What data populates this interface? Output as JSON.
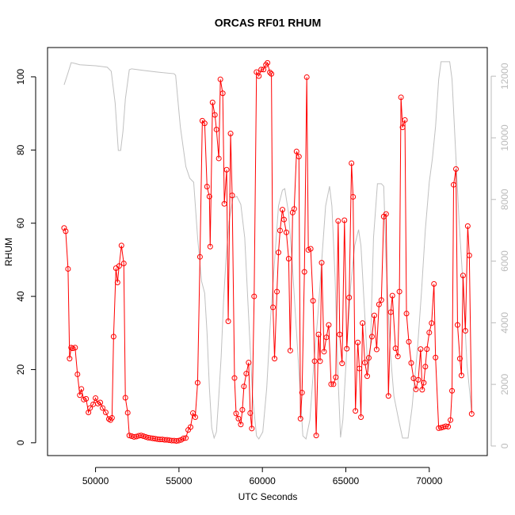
{
  "chart_data": {
    "type": "line",
    "title": "ORCAS RF01 RHUM",
    "xlabel": "UTC Seconds",
    "ylabel": "RHUM",
    "xlim": [
      47124,
      73476
    ],
    "xticks": [
      50000,
      55000,
      60000,
      65000,
      70000
    ],
    "ylim": [
      -3.5,
      108
    ],
    "yticks": [
      0,
      20,
      40,
      60,
      80,
      100
    ],
    "y2lim": [
      -310,
      12930
    ],
    "y2ticks": [
      0,
      2000,
      4000,
      6000,
      8000,
      10000,
      12000
    ],
    "series": [
      {
        "color": "#ff0000",
        "markers": true,
        "x": [
          48118,
          48212,
          48353,
          48447,
          48541,
          48635,
          48776,
          48918,
          49059,
          49153,
          49294,
          49435,
          49576,
          49671,
          49859,
          50000,
          50141,
          50282,
          50424,
          50612,
          50800,
          50894,
          50988,
          51082,
          51224,
          51318,
          51412,
          51553,
          51694,
          51788,
          51929,
          52024,
          52165,
          52306,
          52447,
          52588,
          52729,
          52871,
          53012,
          53153,
          53294,
          53435,
          53576,
          53718,
          53859,
          54000,
          54141,
          54282,
          54424,
          54565,
          54706,
          54847,
          54988,
          55129,
          55271,
          55412,
          55553,
          55694,
          55835,
          55976,
          56118,
          56259,
          56400,
          56541,
          56682,
          56824,
          56871,
          57012,
          57153,
          57247,
          57388,
          57482,
          57624,
          57718,
          57859,
          57953,
          58094,
          58188,
          58329,
          58424,
          58565,
          58706,
          58800,
          58894,
          59035,
          59176,
          59271,
          59365,
          59506,
          59647,
          59788,
          59929,
          60071,
          60212,
          60306,
          60447,
          60541,
          60635,
          60729,
          60871,
          60965,
          61059,
          61200,
          61294,
          61435,
          61576,
          61671,
          61812,
          61906,
          62047,
          62188,
          62282,
          62376,
          62518,
          62659,
          62753,
          62894,
          63035,
          63129,
          63224,
          63365,
          63459,
          63553,
          63694,
          63835,
          63976,
          64118,
          64259,
          64400,
          64541,
          64635,
          64776,
          64918,
          65059,
          65200,
          65341,
          65435,
          65576,
          65718,
          65812,
          65906,
          66000,
          66141,
          66282,
          66376,
          66565,
          66706,
          66847,
          66988,
          67129,
          67271,
          67412,
          67553,
          67694,
          67788,
          67976,
          68118,
          68212,
          68306,
          68400,
          68541,
          68635,
          68776,
          68918,
          69059,
          69200,
          69341,
          69482,
          69576,
          69671,
          69765,
          69859,
          70000,
          70141,
          70282,
          70376,
          70565,
          70706,
          70847,
          70988,
          71129,
          71271,
          71365,
          71459,
          71600,
          71694,
          71835,
          71929,
          72024,
          72165,
          72306,
          72400,
          72541
        ],
        "values": [
          58.7,
          57.8,
          47.5,
          23,
          26,
          25.8,
          26,
          18.7,
          13,
          14.7,
          11.8,
          12,
          8.3,
          9.5,
          10.5,
          12.2,
          10.7,
          11,
          9.5,
          8.3,
          6.5,
          6.2,
          6.8,
          29,
          47.7,
          43.8,
          48.3,
          53.9,
          49,
          12.3,
          8.2,
          2,
          1.8,
          1.6,
          1.7,
          1.9,
          2,
          1.8,
          1.6,
          1.4,
          1.3,
          1.2,
          1.1,
          1,
          0.9,
          0.9,
          0.8,
          0.8,
          0.7,
          0.6,
          0.6,
          0.5,
          0.6,
          0.8,
          1.2,
          1.3,
          3.5,
          4.3,
          8.1,
          7,
          16.4,
          50.8,
          88,
          87.3,
          70,
          67.3,
          53.6,
          93,
          89.6,
          85.6,
          77.7,
          99.3,
          95.5,
          65.3,
          74.6,
          33.2,
          84.5,
          67.6,
          17.7,
          8,
          6.6,
          5,
          9,
          15.4,
          18.9,
          21.9,
          8.1,
          3.9,
          40,
          101.3,
          100.2,
          102,
          102,
          103.3,
          103.8,
          101.2,
          100.8,
          37,
          23,
          41.3,
          52,
          58,
          63.7,
          61,
          57.5,
          50.3,
          25.2,
          62.9,
          63.9,
          79.6,
          78.2,
          6.6,
          13.7,
          46.7,
          99.9,
          52.7,
          53,
          38.8,
          22.3,
          2,
          29.6,
          22.3,
          49.2,
          24.9,
          28.8,
          32.2,
          16,
          16,
          17.9,
          60.6,
          29.6,
          21.7,
          60.8,
          25.7,
          39.7,
          76.4,
          67.2,
          8.7,
          27.4,
          20.3,
          7,
          32.7,
          21.9,
          18.2,
          23.2,
          29,
          34.8,
          25.5,
          37.8,
          39,
          61.8,
          62.5,
          12.8,
          35.7,
          40.2,
          25.8,
          23.6,
          41.3,
          94.4,
          86.2,
          88.2,
          35.3,
          27.6,
          21.8,
          17.6,
          14.6,
          17.2,
          25.6,
          14.5,
          16.4,
          20.8,
          25.6,
          30.1,
          32.7,
          43.4,
          23.3,
          4,
          4.1,
          4.3,
          4.5,
          4.4,
          6.2,
          14.2,
          70.5,
          74.8,
          32.2,
          23,
          18.4,
          45.7,
          30.6,
          59.2,
          51.2,
          7.9
        ]
      },
      {
        "color": "#c0c0c0",
        "axis": "y2",
        "markers": false,
        "x": [
          48118,
          48353,
          48541,
          48729,
          49059,
          50000,
          50706,
          50941,
          51176,
          51365,
          51506,
          51647,
          51788,
          52024,
          52165,
          52824,
          53765,
          54706,
          54800,
          55082,
          55412,
          55647,
          55882,
          56118,
          56353,
          56541,
          56682,
          56824,
          56965,
          57106,
          57247,
          57388,
          57529,
          57671,
          57812,
          58000,
          58235,
          58471,
          58706,
          58941,
          59176,
          59412,
          59647,
          59788,
          60024,
          60259,
          60494,
          60729,
          60965,
          61200,
          61341,
          61576,
          61812,
          62047,
          62282,
          62424,
          62612,
          62847,
          63082,
          63318,
          63553,
          63788,
          64024,
          64165,
          64353,
          64541,
          64682,
          64824,
          65059,
          65294,
          65529,
          65765,
          65906,
          66141,
          66329,
          66471,
          66659,
          66894,
          67129,
          67271,
          67412,
          67647,
          67882,
          68165,
          68400,
          68729,
          68965,
          69294,
          69529,
          69765,
          70000,
          70188,
          70376,
          70565,
          70706,
          71224,
          71365,
          71553,
          71788,
          72024,
          72259,
          72541
        ],
        "values": [
          11720,
          12110,
          12440,
          12420,
          12370,
          12340,
          12290,
          12160,
          11130,
          9590,
          9590,
          10230,
          11260,
          12210,
          12240,
          12190,
          12130,
          12080,
          12030,
          10360,
          9070,
          8690,
          8560,
          6760,
          5350,
          4960,
          3680,
          1880,
          590,
          260,
          460,
          1620,
          2900,
          4700,
          5990,
          7280,
          8050,
          8100,
          7840,
          6760,
          4190,
          1620,
          330,
          230,
          460,
          1880,
          4190,
          5990,
          7790,
          8300,
          8350,
          7530,
          5730,
          3680,
          1620,
          330,
          230,
          850,
          2650,
          4190,
          5990,
          7790,
          8430,
          7790,
          5480,
          2130,
          280,
          850,
          3160,
          5220,
          6500,
          7020,
          6500,
          4190,
          2390,
          3160,
          6760,
          8510,
          8510,
          8430,
          5990,
          3160,
          1620,
          850,
          260,
          260,
          1230,
          3160,
          4960,
          7020,
          8560,
          9330,
          10360,
          11900,
          12470,
          12470,
          11900,
          9850,
          7280,
          5220,
          2650,
          1110
        ]
      }
    ]
  }
}
